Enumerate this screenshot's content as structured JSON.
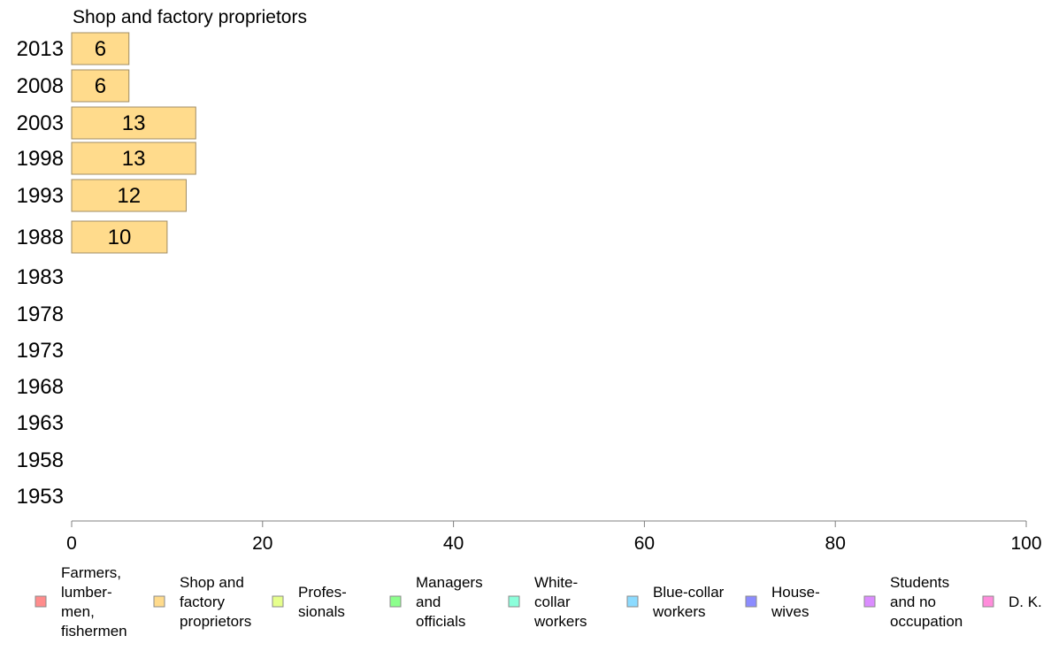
{
  "chart_data": {
    "type": "bar",
    "title": "Shop and factory proprietors",
    "categories": [
      "2013",
      "2008",
      "2003",
      "1998",
      "1993",
      "1988",
      "1983",
      "1978",
      "1973",
      "1968",
      "1963",
      "1958",
      "1953"
    ],
    "series": [
      {
        "name": "Shop and factory proprietors",
        "values": [
          6,
          6,
          13,
          13,
          12,
          10,
          null,
          null,
          null,
          null,
          null,
          null,
          null
        ]
      }
    ],
    "value_labels": [
      "6",
      "6",
      "13",
      "13",
      "12",
      "10",
      "",
      "",
      "",
      "",
      "",
      "",
      ""
    ],
    "xlim": [
      0,
      100
    ],
    "xticks": [
      "0",
      "20",
      "40",
      "60",
      "80",
      "100"
    ],
    "grid": false,
    "bar_color": "#ffdb8c",
    "bar_edge_color": "#a08c64",
    "legend": {
      "placement": "bottom",
      "items": [
        {
          "lines": [
            "Farmers,",
            "lumber-",
            "men,",
            "fishermen"
          ],
          "color": "#ff8c8c"
        },
        {
          "lines": [
            "Shop and",
            "factory",
            "proprietors"
          ],
          "color": "#ffdb8c"
        },
        {
          "lines": [
            "Profes-",
            "sionals"
          ],
          "color": "#e6ff8c"
        },
        {
          "lines": [
            "Managers",
            "and",
            "officials"
          ],
          "color": "#8cff8c"
        },
        {
          "lines": [
            "White-",
            "collar",
            "workers"
          ],
          "color": "#8cffdb"
        },
        {
          "lines": [
            "Blue-collar",
            "workers"
          ],
          "color": "#8cdbff"
        },
        {
          "lines": [
            "House-",
            "wives"
          ],
          "color": "#8c8cff"
        },
        {
          "lines": [
            "Students",
            "and no",
            "occupation"
          ],
          "color": "#db8cff"
        },
        {
          "lines": [
            "D. K."
          ],
          "color": "#ff8cdb"
        }
      ]
    }
  }
}
